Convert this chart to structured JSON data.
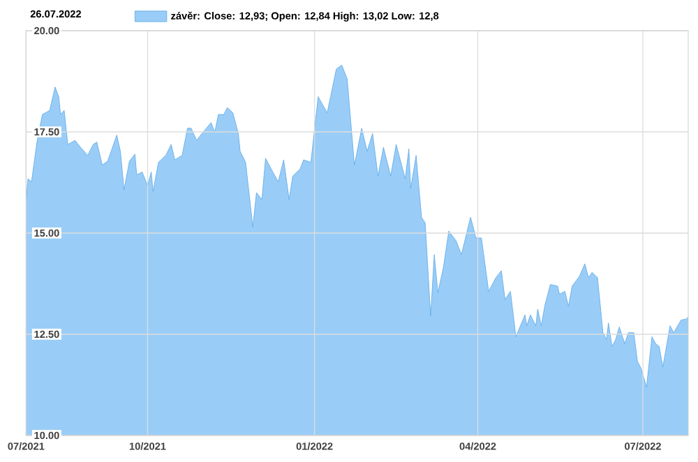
{
  "chart_data": {
    "type": "area",
    "title": "26.07.2022",
    "legend": "top left",
    "grid": true,
    "xlim": [
      "2021-07-26",
      "2022-07-26"
    ],
    "xticks": [
      {
        "value": "2021-07-26",
        "label": "07/2021"
      },
      {
        "value": "2021-10-01",
        "label": "10/2021"
      },
      {
        "value": "2022-01-01",
        "label": "01/2022"
      },
      {
        "value": "2022-04-01",
        "label": "04/2022"
      },
      {
        "value": "2022-07-01",
        "label": "07/2022"
      }
    ],
    "ylim": [
      10,
      20
    ],
    "yticks": [
      {
        "value": 10,
        "label": "10.00"
      },
      {
        "value": 12.5,
        "label": "12.50"
      },
      {
        "value": 15,
        "label": "15.00"
      },
      {
        "value": 17.5,
        "label": "17.50"
      },
      {
        "value": 20,
        "label": "20.00"
      }
    ],
    "x": [
      "2021-07-26",
      "2021-07-27",
      "2021-07-29",
      "2021-08-01",
      "2021-08-04",
      "2021-08-08",
      "2021-08-11",
      "2021-08-13",
      "2021-08-14",
      "2021-08-16",
      "2021-08-18",
      "2021-08-22",
      "2021-08-25",
      "2021-08-29",
      "2021-09-01",
      "2021-09-03",
      "2021-09-06",
      "2021-09-09",
      "2021-09-14",
      "2021-09-16",
      "2021-09-18",
      "2021-09-21",
      "2021-09-24",
      "2021-09-25",
      "2021-09-28",
      "2021-10-01",
      "2021-10-03",
      "2021-10-04",
      "2021-10-07",
      "2021-10-11",
      "2021-10-14",
      "2021-10-16",
      "2021-10-20",
      "2021-10-23",
      "2021-10-25",
      "2021-10-28",
      "2021-10-31",
      "2021-11-05",
      "2021-11-07",
      "2021-11-09",
      "2021-11-12",
      "2021-11-14",
      "2021-11-17",
      "2021-11-20",
      "2021-11-21",
      "2021-11-24",
      "2021-11-27",
      "2021-11-28",
      "2021-11-30",
      "2021-12-03",
      "2021-12-05",
      "2021-12-09",
      "2021-12-12",
      "2021-12-15",
      "2021-12-18",
      "2021-12-20",
      "2021-12-24",
      "2021-12-26",
      "2021-12-30",
      "2022-01-03",
      "2022-01-08",
      "2022-01-13",
      "2022-01-16",
      "2022-01-19",
      "2022-01-23",
      "2022-01-27",
      "2022-01-30",
      "2022-02-02",
      "2022-02-05",
      "2022-02-08",
      "2022-02-12",
      "2022-02-15",
      "2022-02-20",
      "2022-02-22",
      "2022-02-23",
      "2022-02-26",
      "2022-03-01",
      "2022-03-03",
      "2022-03-06",
      "2022-03-08",
      "2022-03-10",
      "2022-03-13",
      "2022-03-16",
      "2022-03-20",
      "2022-03-23",
      "2022-03-28",
      "2022-03-31",
      "2022-04-03",
      "2022-04-07",
      "2022-04-11",
      "2022-04-14",
      "2022-04-16",
      "2022-04-19",
      "2022-04-22",
      "2022-04-27",
      "2022-04-28",
      "2022-04-30",
      "2022-05-03",
      "2022-05-04",
      "2022-05-06",
      "2022-05-08",
      "2022-05-11",
      "2022-05-15",
      "2022-05-16",
      "2022-05-19",
      "2022-05-21",
      "2022-05-23",
      "2022-05-27",
      "2022-05-30",
      "2022-06-01",
      "2022-06-03",
      "2022-06-06",
      "2022-06-09",
      "2022-06-11",
      "2022-06-12",
      "2022-06-14",
      "2022-06-16",
      "2022-06-18",
      "2022-06-21",
      "2022-06-23",
      "2022-06-26",
      "2022-06-28",
      "2022-06-30",
      "2022-07-03",
      "2022-07-06",
      "2022-07-08",
      "2022-07-10",
      "2022-07-12",
      "2022-07-16",
      "2022-07-18",
      "2022-07-22",
      "2022-07-25",
      "2022-07-26"
    ],
    "series": [
      {
        "name": "závěr: Close: 12,93; Open: 12,84 High: 13,02 Low: 12,8",
        "color": "#99cdf7",
        "values": [
          15.76,
          16.34,
          16.27,
          17.25,
          17.93,
          18.03,
          18.61,
          18.37,
          17.93,
          18.03,
          17.19,
          17.29,
          17.12,
          16.92,
          17.19,
          17.25,
          16.68,
          16.78,
          17.42,
          17.02,
          16.07,
          16.78,
          16.95,
          16.44,
          16.51,
          16.17,
          16.51,
          16.03,
          16.75,
          16.92,
          17.19,
          16.81,
          16.92,
          17.59,
          17.59,
          17.29,
          17.46,
          17.73,
          17.49,
          17.93,
          17.93,
          18.1,
          17.97,
          17.46,
          17.02,
          16.75,
          15.56,
          15.15,
          16.0,
          15.83,
          16.85,
          16.51,
          16.27,
          16.81,
          15.83,
          16.41,
          16.58,
          16.81,
          16.75,
          18.37,
          17.97,
          19.05,
          19.15,
          18.81,
          16.68,
          17.59,
          17.02,
          17.46,
          16.41,
          17.12,
          16.41,
          17.19,
          16.34,
          17.08,
          16.1,
          16.92,
          15.39,
          15.25,
          12.95,
          14.47,
          13.53,
          14.14,
          15.05,
          14.81,
          14.47,
          15.39,
          14.88,
          14.88,
          13.56,
          13.9,
          14.07,
          13.36,
          13.56,
          12.44,
          12.98,
          12.71,
          12.98,
          12.71,
          13.12,
          12.71,
          13.22,
          13.73,
          13.69,
          13.49,
          13.56,
          13.19,
          13.69,
          13.93,
          14.24,
          13.9,
          14.03,
          13.9,
          12.54,
          12.37,
          12.78,
          12.2,
          12.37,
          12.68,
          12.27,
          12.54,
          12.54,
          11.83,
          11.66,
          11.19,
          12.44,
          12.27,
          12.2,
          11.69,
          12.71,
          12.54,
          12.85,
          12.88,
          12.93
        ]
      }
    ]
  }
}
